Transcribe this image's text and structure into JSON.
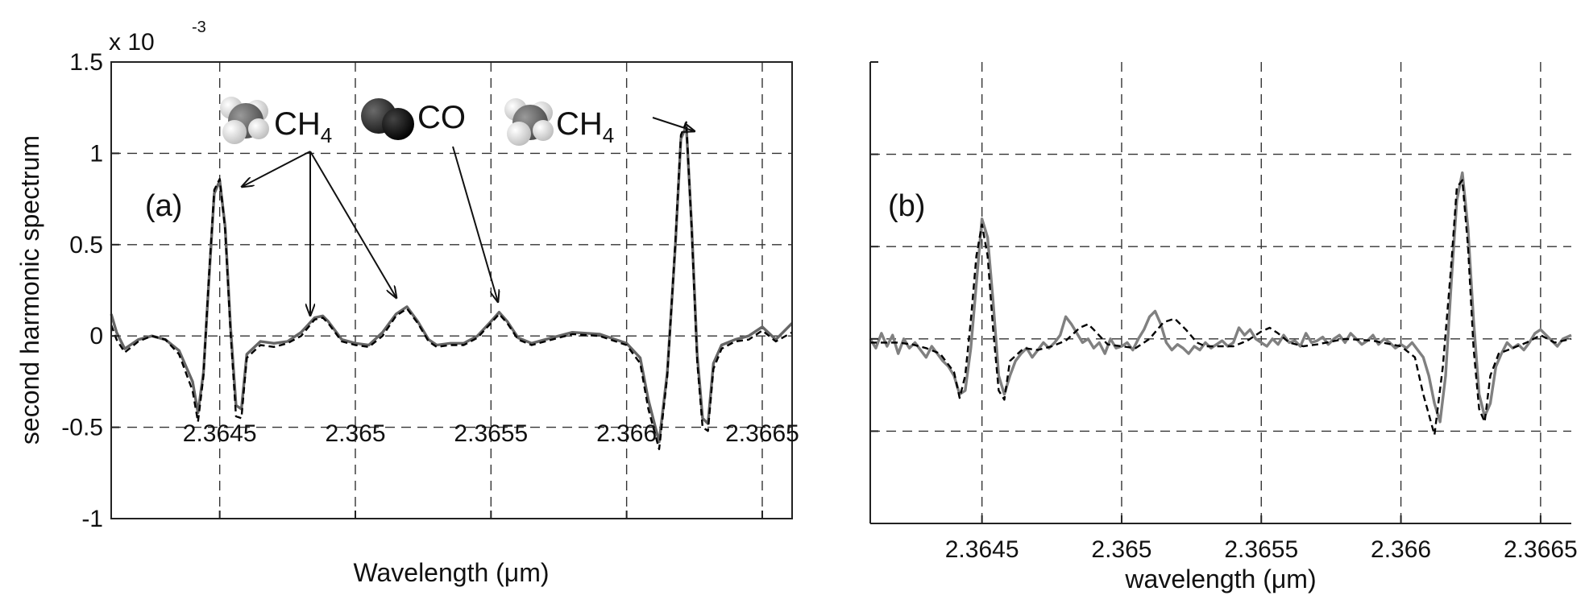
{
  "chart_data": [
    {
      "type": "line",
      "panel_label": "(a)",
      "xlabel": "Wavelength (μm)",
      "ylabel": "second harmonic spectrum",
      "y_exponent": "x 10",
      "y_exponent_power": "-3",
      "xlim": [
        2.3641,
        2.36661
      ],
      "ylim": [
        -1,
        1.5
      ],
      "x_ticks": [
        2.3645,
        2.365,
        2.3655,
        2.366,
        2.3665
      ],
      "x_tick_labels": [
        "2.3645",
        "2.365",
        "2.3655",
        "2.366",
        "2.3665"
      ],
      "y_ticks": [
        1.5,
        1,
        0.5,
        0,
        -0.5,
        -1
      ],
      "y_tick_labels": [
        "1.5",
        "1",
        "0.5",
        "0",
        "-0.5",
        "-1"
      ],
      "grid": true,
      "annotations": [
        {
          "text": "CH",
          "sub": "4",
          "molecule": "methane-icon"
        },
        {
          "text": "CO",
          "molecule": "co-molecule-icon"
        },
        {
          "text": "CH",
          "sub": "4",
          "molecule": "methane-icon"
        }
      ],
      "arrows": [
        {
          "to": [
            2.36451,
            0.82
          ]
        },
        {
          "to": [
            2.36488,
            0.1
          ]
        },
        {
          "to": [
            2.36519,
            0.16
          ]
        },
        {
          "to": [
            2.36552,
            0.17
          ]
        },
        {
          "to": [
            2.36625,
            1.12
          ]
        }
      ],
      "series": [
        {
          "style": "solid",
          "color": "#666666",
          "x": [
            2.3641,
            2.36412,
            2.36415,
            2.3642,
            2.36425,
            2.3643,
            2.36435,
            2.3644,
            2.36442,
            2.36444,
            2.36446,
            2.36448,
            2.3645,
            2.36452,
            2.36454,
            2.36456,
            2.36458,
            2.3646,
            2.36465,
            2.3647,
            2.36475,
            2.3648,
            2.36485,
            2.36488,
            2.3649,
            2.36495,
            2.365,
            2.36505,
            2.3651,
            2.36515,
            2.36519,
            2.36523,
            2.36527,
            2.3653,
            2.36535,
            2.3654,
            2.36545,
            2.3655,
            2.36553,
            2.36556,
            2.3656,
            2.36565,
            2.3657,
            2.3658,
            2.3659,
            2.366,
            2.36605,
            2.36608,
            2.36612,
            2.36615,
            2.36618,
            2.3662,
            2.36622,
            2.36624,
            2.36626,
            2.36628,
            2.3663,
            2.36632,
            2.36635,
            2.3664,
            2.36645,
            2.3665,
            2.36655,
            2.36661
          ],
          "y": [
            0.12,
            0.02,
            -0.07,
            -0.02,
            0.0,
            -0.02,
            -0.08,
            -0.25,
            -0.42,
            -0.2,
            0.3,
            0.78,
            0.85,
            0.6,
            0.05,
            -0.38,
            -0.4,
            -0.1,
            -0.03,
            -0.04,
            -0.03,
            0.02,
            0.1,
            0.11,
            0.08,
            -0.02,
            -0.04,
            -0.05,
            0.02,
            0.12,
            0.16,
            0.08,
            -0.02,
            -0.05,
            -0.04,
            -0.04,
            0.0,
            0.08,
            0.13,
            0.08,
            -0.01,
            -0.04,
            -0.02,
            0.02,
            0.01,
            -0.04,
            -0.12,
            -0.35,
            -0.58,
            -0.2,
            0.5,
            1.08,
            1.15,
            0.6,
            -0.1,
            -0.45,
            -0.48,
            -0.15,
            -0.05,
            -0.02,
            0.0,
            0.05,
            -0.02,
            0.07
          ]
        },
        {
          "style": "dashed",
          "color": "#000000",
          "x": [
            2.3641,
            2.36412,
            2.36415,
            2.3642,
            2.36425,
            2.3643,
            2.36435,
            2.3644,
            2.36442,
            2.36444,
            2.36446,
            2.36448,
            2.3645,
            2.36452,
            2.36454,
            2.36456,
            2.36458,
            2.3646,
            2.36465,
            2.3647,
            2.36475,
            2.3648,
            2.36485,
            2.36488,
            2.3649,
            2.36495,
            2.365,
            2.36505,
            2.3651,
            2.36515,
            2.36519,
            2.36523,
            2.36527,
            2.3653,
            2.36535,
            2.3654,
            2.36545,
            2.3655,
            2.36553,
            2.36556,
            2.3656,
            2.36565,
            2.3657,
            2.3658,
            2.3659,
            2.366,
            2.36605,
            2.36608,
            2.36612,
            2.36615,
            2.36618,
            2.3662,
            2.36622,
            2.36624,
            2.36626,
            2.36628,
            2.3663,
            2.36632,
            2.36635,
            2.3664,
            2.36645,
            2.3665,
            2.36655,
            2.36661
          ],
          "y": [
            0.06,
            -0.02,
            -0.09,
            -0.03,
            0.0,
            -0.02,
            -0.1,
            -0.3,
            -0.47,
            -0.22,
            0.32,
            0.8,
            0.86,
            0.58,
            0.02,
            -0.44,
            -0.45,
            -0.12,
            -0.05,
            -0.06,
            -0.04,
            0.0,
            0.09,
            0.1,
            0.07,
            -0.03,
            -0.05,
            -0.06,
            0.0,
            0.11,
            0.15,
            0.07,
            -0.03,
            -0.06,
            -0.05,
            -0.05,
            -0.01,
            0.07,
            0.12,
            0.07,
            -0.02,
            -0.05,
            -0.03,
            0.01,
            0.0,
            -0.05,
            -0.15,
            -0.4,
            -0.62,
            -0.22,
            0.52,
            1.1,
            1.17,
            0.58,
            -0.14,
            -0.5,
            -0.52,
            -0.18,
            -0.07,
            -0.03,
            -0.02,
            0.03,
            -0.03,
            0.02
          ]
        }
      ]
    },
    {
      "type": "line",
      "panel_label": "(b)",
      "xlabel": "wavelength (μm)",
      "xlim": [
        2.3641,
        2.36661
      ],
      "ylim": [
        -1,
        1.5
      ],
      "x_ticks": [
        2.3645,
        2.365,
        2.3655,
        2.366,
        2.3665
      ],
      "x_tick_labels": [
        "2.3645",
        "2.365",
        "2.3655",
        "2.366",
        "2.3665"
      ],
      "y_ticks": [
        1.5,
        1,
        0.5,
        0,
        -0.5,
        -1
      ],
      "grid": true,
      "series": [
        {
          "style": "solid",
          "color": "#808080",
          "x": [
            2.3641,
            2.36412,
            2.36414,
            2.36416,
            2.36418,
            2.3642,
            2.36422,
            2.36424,
            2.36426,
            2.36428,
            2.3643,
            2.36432,
            2.36434,
            2.36436,
            2.36438,
            2.3644,
            2.36442,
            2.36444,
            2.36446,
            2.36448,
            2.3645,
            2.36452,
            2.36454,
            2.36456,
            2.36458,
            2.3646,
            2.36462,
            2.36464,
            2.36466,
            2.36468,
            2.3647,
            2.36472,
            2.36474,
            2.36476,
            2.36478,
            2.3648,
            2.36482,
            2.36484,
            2.36486,
            2.36488,
            2.3649,
            2.36492,
            2.36494,
            2.36496,
            2.36498,
            2.365,
            2.36502,
            2.36504,
            2.36506,
            2.36508,
            2.3651,
            2.36512,
            2.36514,
            2.36516,
            2.36518,
            2.3652,
            2.36522,
            2.36524,
            2.36526,
            2.36528,
            2.3653,
            2.36532,
            2.36534,
            2.36536,
            2.36538,
            2.3654,
            2.36542,
            2.36544,
            2.36546,
            2.36548,
            2.3655,
            2.36552,
            2.36554,
            2.36556,
            2.36558,
            2.3656,
            2.36562,
            2.36564,
            2.36566,
            2.36568,
            2.3657,
            2.36572,
            2.36574,
            2.36576,
            2.36578,
            2.3658,
            2.36582,
            2.36584,
            2.36586,
            2.36588,
            2.3659,
            2.36592,
            2.36594,
            2.36596,
            2.36598,
            2.366,
            2.36602,
            2.36604,
            2.36606,
            2.36608,
            2.3661,
            2.36612,
            2.36614,
            2.36616,
            2.36618,
            2.3662,
            2.36622,
            2.36624,
            2.36626,
            2.36628,
            2.3663,
            2.36632,
            2.36634,
            2.36636,
            2.36638,
            2.3664,
            2.36642,
            2.36644,
            2.36646,
            2.36648,
            2.3665,
            2.36652,
            2.36654,
            2.36656,
            2.36658,
            2.36661
          ],
          "y": [
            0.0,
            -0.05,
            0.03,
            -0.04,
            0.02,
            -0.08,
            0.0,
            -0.05,
            -0.02,
            -0.06,
            -0.1,
            -0.04,
            -0.08,
            -0.12,
            -0.15,
            -0.2,
            -0.3,
            -0.28,
            -0.05,
            0.3,
            0.65,
            0.55,
            0.2,
            -0.2,
            -0.3,
            -0.2,
            -0.12,
            -0.08,
            -0.05,
            -0.1,
            -0.06,
            -0.02,
            -0.05,
            -0.02,
            0.02,
            0.12,
            0.08,
            0.03,
            -0.02,
            0.0,
            -0.05,
            -0.02,
            -0.08,
            0.0,
            -0.05,
            -0.04,
            -0.02,
            -0.06,
            0.0,
            0.05,
            0.12,
            0.15,
            0.08,
            -0.02,
            -0.06,
            -0.03,
            -0.05,
            -0.08,
            -0.04,
            -0.06,
            -0.02,
            -0.05,
            -0.03,
            -0.01,
            -0.04,
            -0.02,
            0.06,
            0.02,
            0.05,
            0.0,
            -0.02,
            -0.04,
            0.0,
            -0.03,
            0.02,
            -0.02,
            -0.01,
            -0.04,
            0.03,
            -0.02,
            -0.01,
            0.01,
            -0.03,
            0.0,
            0.02,
            -0.02,
            0.03,
            0.0,
            -0.03,
            -0.01,
            0.02,
            -0.03,
            0.0,
            -0.02,
            -0.05,
            -0.03,
            -0.05,
            -0.02,
            -0.06,
            -0.1,
            -0.2,
            -0.35,
            -0.45,
            -0.2,
            0.3,
            0.75,
            0.9,
            0.6,
            0.1,
            -0.3,
            -0.42,
            -0.35,
            -0.15,
            -0.08,
            -0.02,
            -0.05,
            -0.03,
            -0.06,
            -0.02,
            0.03,
            0.05,
            0.02,
            -0.01,
            -0.04,
            0.0,
            0.02
          ]
        },
        {
          "style": "dashed",
          "color": "#000000",
          "x": [
            2.3641,
            2.36415,
            2.3642,
            2.36425,
            2.3643,
            2.36435,
            2.3644,
            2.36442,
            2.36444,
            2.36446,
            2.36448,
            2.3645,
            2.36452,
            2.36454,
            2.36456,
            2.36458,
            2.3646,
            2.36465,
            2.3647,
            2.36475,
            2.3648,
            2.36485,
            2.36488,
            2.3649,
            2.36495,
            2.365,
            2.36505,
            2.3651,
            2.36515,
            2.36519,
            2.36523,
            2.36527,
            2.3653,
            2.36535,
            2.3654,
            2.36545,
            2.3655,
            2.36553,
            2.36556,
            2.3656,
            2.36565,
            2.3657,
            2.3658,
            2.3659,
            2.366,
            2.36605,
            2.36608,
            2.36612,
            2.36615,
            2.36618,
            2.3662,
            2.36622,
            2.36624,
            2.36626,
            2.36628,
            2.3663,
            2.36632,
            2.36635,
            2.3664,
            2.36645,
            2.3665,
            2.36655,
            2.36661
          ],
          "y": [
            -0.02,
            -0.02,
            -0.02,
            -0.03,
            -0.05,
            -0.08,
            -0.18,
            -0.32,
            -0.2,
            0.1,
            0.45,
            0.62,
            0.45,
            0.05,
            -0.28,
            -0.33,
            -0.12,
            -0.05,
            -0.06,
            -0.04,
            -0.01,
            0.06,
            0.08,
            0.05,
            -0.03,
            -0.04,
            -0.05,
            0.0,
            0.09,
            0.11,
            0.05,
            -0.02,
            -0.04,
            -0.04,
            -0.04,
            -0.01,
            0.04,
            0.06,
            0.03,
            -0.02,
            -0.04,
            -0.03,
            0.0,
            -0.01,
            -0.04,
            -0.1,
            -0.3,
            -0.52,
            -0.15,
            0.4,
            0.82,
            0.86,
            0.5,
            -0.05,
            -0.38,
            -0.45,
            -0.2,
            -0.08,
            -0.05,
            -0.02,
            0.02,
            -0.02,
            0.0
          ]
        }
      ]
    }
  ]
}
